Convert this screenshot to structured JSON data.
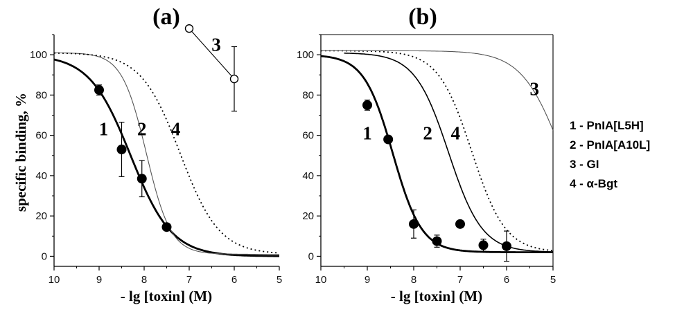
{
  "figure": {
    "ylabel": "specific binding, %",
    "legend": [
      "1 - PnIA[L5H]",
      "2 - PnIA[A10L]",
      "3 - GI",
      "4 - α-Bgt"
    ]
  },
  "chart_data": [
    {
      "panel": "(a)",
      "type": "scatter",
      "xlabel": "- lg [toxin] (M)",
      "ylabel": "specific binding, %",
      "xlim": [
        10,
        5
      ],
      "ylim": [
        -5,
        110
      ],
      "xticks": [
        "10",
        "9",
        "8",
        "7",
        "6",
        "5"
      ],
      "yticks": [
        "0",
        "20",
        "40",
        "60",
        "80",
        "100"
      ],
      "curve_labels": [
        {
          "text": "1",
          "x": 8.9,
          "y": 60
        },
        {
          "text": "2",
          "x": 8.05,
          "y": 60
        },
        {
          "text": "4",
          "x": 7.3,
          "y": 60
        },
        {
          "text": "3",
          "x": 6.4,
          "y": 102
        }
      ],
      "series": [
        {
          "name": "1",
          "style": "thick-solid",
          "fit": {
            "top": 100,
            "bottom": 0,
            "logIC50": -8.3,
            "hill": 0.95
          },
          "points": [
            {
              "x": 9,
              "y": 82.5,
              "err": 2.5
            },
            {
              "x": 8.5,
              "y": 53,
              "err": 13.5
            },
            {
              "x": 8.05,
              "y": 38.5,
              "err": 9
            },
            {
              "x": 7.5,
              "y": 14.5,
              "err": 0
            }
          ],
          "marker": "filled"
        },
        {
          "name": "2",
          "style": "thin-solid",
          "fit": {
            "top": 101,
            "bottom": 1,
            "logIC50": -7.95,
            "hill": 1.6
          },
          "points": []
        },
        {
          "name": "4",
          "style": "dotted",
          "fit": {
            "top": 101,
            "bottom": 1,
            "logIC50": -7.2,
            "hill": 1.0
          },
          "points": []
        },
        {
          "name": "3",
          "style": "connected-open",
          "points": [
            {
              "x": 7,
              "y": 113,
              "err": 0
            },
            {
              "x": 6,
              "y": 88,
              "err": 16
            }
          ],
          "marker": "open"
        }
      ]
    },
    {
      "panel": "(b)",
      "type": "scatter",
      "xlabel": "- lg [toxin] (M)",
      "ylabel": "",
      "xlim": [
        10,
        5
      ],
      "ylim": [
        -5,
        110
      ],
      "xticks": [
        "10",
        "9",
        "8",
        "7",
        "6",
        "5"
      ],
      "yticks": [
        "0",
        "20",
        "40",
        "60",
        "80",
        "100"
      ],
      "curve_labels": [
        {
          "text": "1",
          "x": 9.0,
          "y": 58
        },
        {
          "text": "2",
          "x": 7.7,
          "y": 58
        },
        {
          "text": "4",
          "x": 7.1,
          "y": 58
        },
        {
          "text": "3",
          "x": 5.4,
          "y": 80
        }
      ],
      "series": [
        {
          "name": "1",
          "style": "thick-solid",
          "fit": {
            "top": 100,
            "bottom": 2,
            "logIC50": -8.45,
            "hill": 1.4
          },
          "points": [
            {
              "x": 9,
              "y": 75,
              "err": 2.5
            },
            {
              "x": 8.55,
              "y": 58,
              "err": 0
            },
            {
              "x": 8,
              "y": 16,
              "err": 7
            },
            {
              "x": 7.5,
              "y": 7.5,
              "err": 3
            },
            {
              "x": 7,
              "y": 16,
              "err": 0
            },
            {
              "x": 6.5,
              "y": 5.5,
              "err": 3
            },
            {
              "x": 6,
              "y": 5,
              "err": 7.5
            }
          ],
          "marker": "filled"
        },
        {
          "name": "2",
          "style": "medium-solid",
          "fit": {
            "top": 101,
            "bottom": 2,
            "logIC50": -7.25,
            "hill": 1.2
          },
          "xmin_lg": 9.5,
          "points": []
        },
        {
          "name": "4",
          "style": "dotted",
          "fit": {
            "top": 102,
            "bottom": 2,
            "logIC50": -6.75,
            "hill": 1.2
          },
          "points": []
        },
        {
          "name": "3",
          "style": "thin-solid",
          "fit": {
            "top": 102,
            "bottom": 0,
            "logIC50": -4.8,
            "hill": 1.0
          },
          "points": []
        }
      ]
    }
  ]
}
